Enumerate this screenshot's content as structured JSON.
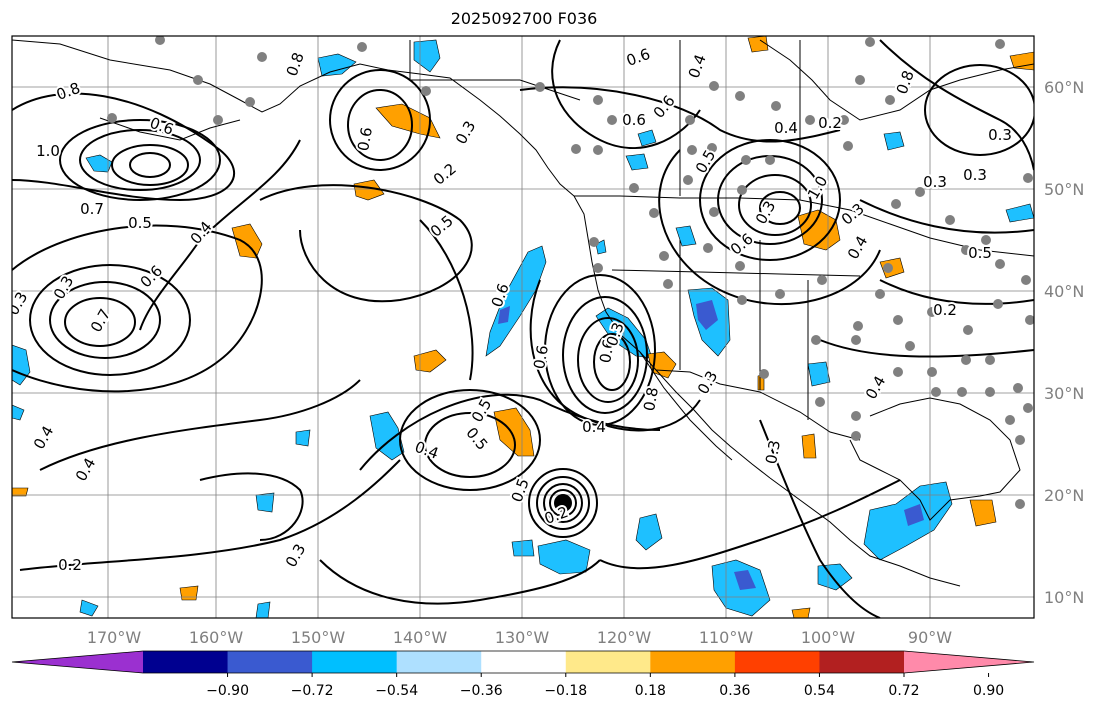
{
  "title": "2025092700 F036",
  "map": {
    "lon_labels": [
      "170°W",
      "160°W",
      "150°W",
      "140°W",
      "130°W",
      "120°W",
      "110°W",
      "100°W",
      "90°W"
    ],
    "lat_labels": [
      "60°N",
      "50°N",
      "40°N",
      "30°N",
      "20°N",
      "10°N"
    ],
    "contour_labels": [
      "0.8",
      "1.0",
      "0.7",
      "0.5",
      "0.6",
      "0.3",
      "0.4",
      "0.2",
      "0.7",
      "0.6",
      "0.3",
      "0.6",
      "0.4",
      "0.5",
      "0.6",
      "0.3",
      "0.8",
      "0.4",
      "0.3",
      "0.5",
      "0.2",
      "0.4",
      "0.5",
      "0.6",
      "0.3",
      "0.8",
      "0.6",
      "0.3",
      "0.4",
      "0.2",
      "0.3",
      "0.3",
      "0.2",
      "0.3",
      "0.4",
      "0.4",
      "0.3",
      "1.0",
      "0.8",
      "0.5",
      "0.6",
      "0.6",
      "0.6",
      "0.6",
      "0.5",
      "0.2",
      "0.4",
      "0.3",
      "0.3",
      "0.5",
      "0.4"
    ],
    "colors": {
      "contour": "#000000",
      "grid": "#808080",
      "coast": "#000000",
      "station_dots": "#808080",
      "neg_fill": "#1ec0ff",
      "neg_fill_dark": "#3a5ad0",
      "pos_fill": "#ffa000"
    }
  },
  "colorbar": {
    "ticks": [
      "−0.90",
      "−0.72",
      "−0.54",
      "−0.36",
      "−0.18",
      "0.18",
      "0.36",
      "0.54",
      "0.72",
      "0.90"
    ],
    "colors": [
      "#9b30d0",
      "#000090",
      "#3a5ad0",
      "#00bfff",
      "#aee0ff",
      "#ffffff",
      "#ffe98a",
      "#ffa000",
      "#ff4000",
      "#b22020",
      "#ff8aaa"
    ]
  }
}
